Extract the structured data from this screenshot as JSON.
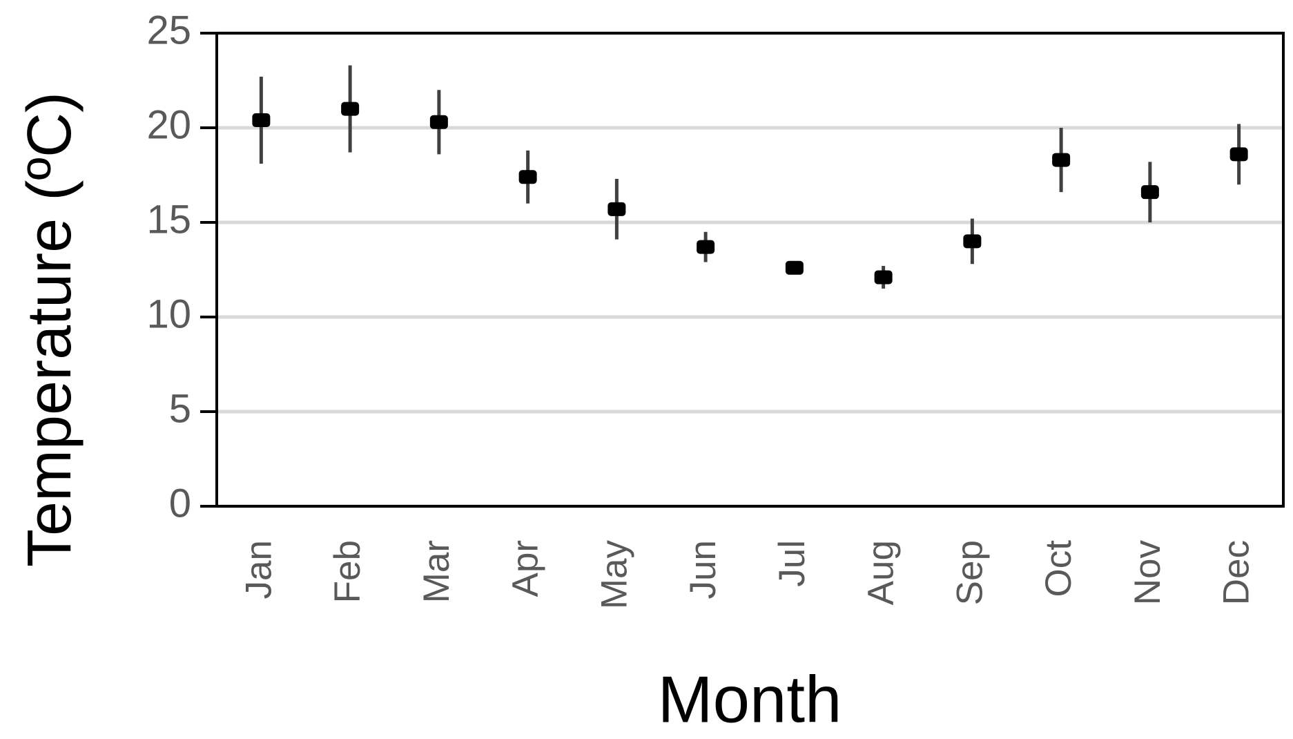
{
  "chart_data": {
    "type": "scatter",
    "x_label": "Month",
    "y_label": "Temperature (ºC)",
    "categories": [
      "Jan",
      "Feb",
      "Mar",
      "Apr",
      "May",
      "Jun",
      "Jul",
      "Aug",
      "Sep",
      "Oct",
      "Nov",
      "Dec"
    ],
    "values": [
      20.4,
      21.0,
      20.3,
      17.4,
      15.7,
      13.7,
      12.6,
      12.1,
      14.0,
      18.3,
      16.6,
      18.6
    ],
    "errors": [
      2.3,
      2.3,
      1.7,
      1.4,
      1.6,
      0.8,
      0.1,
      0.6,
      1.2,
      1.7,
      1.6,
      1.6
    ],
    "color": "#000000",
    "ylim": [
      0,
      25
    ],
    "yticks": [
      0,
      5,
      10,
      15,
      20,
      25
    ],
    "grid": true
  }
}
